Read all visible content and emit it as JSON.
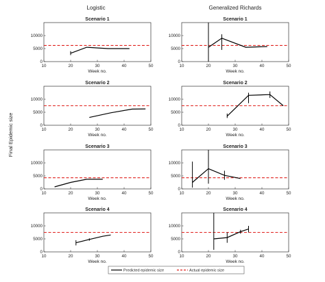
{
  "figure": {
    "ylabel": "Final Epidemic size",
    "column_titles": [
      "Logistic",
      "Generalized Richards"
    ],
    "xlabel": "Week no.",
    "legend": {
      "predicted_label": "Predicted epidemic size",
      "actual_label": "Actual epidemic size"
    },
    "colors": {
      "predicted": "#000000",
      "actual": "#e0201c"
    }
  },
  "chart_data": [
    {
      "type": "line",
      "title": "Scenario 1",
      "column": "Logistic",
      "xlim": [
        10,
        50
      ],
      "ylim": [
        0,
        15000
      ],
      "xticks": [
        "10",
        "20",
        "30",
        "40",
        "50"
      ],
      "yticks": [
        "0",
        "5000",
        "10000"
      ],
      "actual": 6200,
      "series": [
        {
          "name": "Predicted epidemic size",
          "points": [
            {
              "x": 20,
              "y": 3200,
              "lo": 2500,
              "hi": 4000
            },
            {
              "x": 26,
              "y": 5500
            },
            {
              "x": 34,
              "y": 5000
            },
            {
              "x": 42,
              "y": 5000
            }
          ]
        }
      ]
    },
    {
      "type": "line",
      "title": "Scenario 1",
      "column": "Generalized Richards",
      "xlim": [
        10,
        50
      ],
      "ylim": [
        0,
        15000
      ],
      "xticks": [
        "10",
        "20",
        "30",
        "40",
        "50"
      ],
      "yticks": [
        "0",
        "5000",
        "10000"
      ],
      "actual": 6200,
      "series": [
        {
          "name": "Predicted epidemic size",
          "points": [
            {
              "x": 20,
              "y": 5500,
              "lo": 0,
              "hi": 15000
            },
            {
              "x": 25,
              "y": 9000,
              "lo": 4500,
              "hi": 10500
            },
            {
              "x": 34,
              "y": 5500
            },
            {
              "x": 42,
              "y": 5800
            }
          ]
        }
      ]
    },
    {
      "type": "line",
      "title": "Scenario 2",
      "column": "Logistic",
      "xlim": [
        10,
        50
      ],
      "ylim": [
        0,
        15000
      ],
      "xticks": [
        "10",
        "20",
        "30",
        "40",
        "50"
      ],
      "yticks": [
        "0",
        "5000",
        "10000"
      ],
      "actual": 7500,
      "series": [
        {
          "name": "Predicted epidemic size",
          "points": [
            {
              "x": 27,
              "y": 3000
            },
            {
              "x": 35,
              "y": 4800
            },
            {
              "x": 43,
              "y": 6200
            },
            {
              "x": 48,
              "y": 6300
            }
          ]
        }
      ]
    },
    {
      "type": "line",
      "title": "Scenario 2",
      "column": "Generalized Richards",
      "xlim": [
        10,
        50
      ],
      "ylim": [
        0,
        15000
      ],
      "xticks": [
        "10",
        "20",
        "30",
        "40",
        "50"
      ],
      "yticks": [
        "0",
        "5000",
        "10000"
      ],
      "actual": 7500,
      "series": [
        {
          "name": "Predicted epidemic size",
          "points": [
            {
              "x": 27,
              "y": 3500,
              "lo": 2800,
              "hi": 4500
            },
            {
              "x": 35,
              "y": 11500,
              "lo": 8500,
              "hi": 12500
            },
            {
              "x": 43,
              "y": 11800,
              "lo": 10500,
              "hi": 13000
            },
            {
              "x": 48,
              "y": 7500
            }
          ]
        }
      ]
    },
    {
      "type": "line",
      "title": "Scenario 3",
      "column": "Logistic",
      "xlim": [
        10,
        50
      ],
      "ylim": [
        0,
        15000
      ],
      "xticks": [
        "10",
        "20",
        "30",
        "40",
        "50"
      ],
      "yticks": [
        "0",
        "5000",
        "10000"
      ],
      "actual": 4300,
      "series": [
        {
          "name": "Predicted epidemic size",
          "points": [
            {
              "x": 14,
              "y": 800
            },
            {
              "x": 20,
              "y": 2500
            },
            {
              "x": 26,
              "y": 3700
            },
            {
              "x": 32,
              "y": 3700
            }
          ]
        }
      ]
    },
    {
      "type": "line",
      "title": "Scenario 3",
      "column": "Generalized Richards",
      "xlim": [
        10,
        50
      ],
      "ylim": [
        0,
        15000
      ],
      "xticks": [
        "10",
        "20",
        "30",
        "40",
        "50"
      ],
      "yticks": [
        "0",
        "5000",
        "10000"
      ],
      "actual": 4300,
      "series": [
        {
          "name": "Predicted epidemic size",
          "points": [
            {
              "x": 14,
              "y": 2500,
              "lo": 500,
              "hi": 10500
            },
            {
              "x": 20,
              "y": 7800,
              "lo": 2000,
              "hi": 15000
            },
            {
              "x": 26,
              "y": 5200,
              "lo": 3500,
              "hi": 7000
            },
            {
              "x": 32,
              "y": 4000
            }
          ]
        }
      ]
    },
    {
      "type": "line",
      "title": "Scenario 4",
      "column": "Logistic",
      "xlim": [
        10,
        50
      ],
      "ylim": [
        0,
        15000
      ],
      "xticks": [
        "10",
        "20",
        "30",
        "40",
        "50"
      ],
      "yticks": [
        "0",
        "5000",
        "10000"
      ],
      "actual": 7500,
      "series": [
        {
          "name": "Predicted epidemic size",
          "points": [
            {
              "x": 22,
              "y": 3500,
              "lo": 2500,
              "hi": 4500
            },
            {
              "x": 27,
              "y": 4800,
              "lo": 4300,
              "hi": 5200
            },
            {
              "x": 32,
              "y": 6000
            },
            {
              "x": 35,
              "y": 6500
            }
          ]
        }
      ]
    },
    {
      "type": "line",
      "title": "Scenario 4",
      "column": "Generalized Richards",
      "xlim": [
        10,
        50
      ],
      "ylim": [
        0,
        15000
      ],
      "xticks": [
        "10",
        "20",
        "30",
        "40",
        "50"
      ],
      "yticks": [
        "0",
        "5000",
        "10000"
      ],
      "actual": 7500,
      "series": [
        {
          "name": "Predicted epidemic size",
          "points": [
            {
              "x": 22,
              "y": 5000,
              "lo": 800,
              "hi": 15000
            },
            {
              "x": 27,
              "y": 5500,
              "lo": 3500,
              "hi": 7500
            },
            {
              "x": 32,
              "y": 7800,
              "lo": 7000,
              "hi": 8500
            },
            {
              "x": 35,
              "y": 8800,
              "lo": 7500,
              "hi": 10000
            }
          ]
        }
      ]
    }
  ]
}
